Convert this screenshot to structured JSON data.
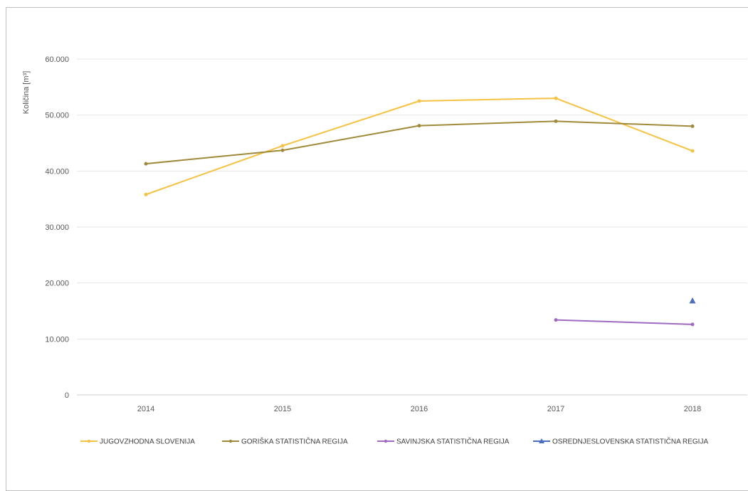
{
  "chart_data": {
    "type": "line",
    "title": "",
    "xlabel": "",
    "ylabel": "Količina [m³]",
    "categories": [
      "2014",
      "2015",
      "2016",
      "2017",
      "2018"
    ],
    "y_tick_labels": [
      "0",
      "10.000",
      "20.000",
      "30.000",
      "40.000",
      "50.000",
      "60.000"
    ],
    "ylim": [
      0,
      60000
    ],
    "grid": true,
    "legend_position": "bottom",
    "series": [
      {
        "name": "JUGOVZHODNA SLOVENIJA",
        "color": "#f5c242",
        "marker": "circle",
        "values": [
          35800,
          44500,
          52500,
          53000,
          43600
        ]
      },
      {
        "name": "GORIŠKA STATISTIČNA REGIJA",
        "color": "#a08a3a",
        "marker": "circle",
        "values": [
          41300,
          43700,
          48100,
          48900,
          48000
        ]
      },
      {
        "name": "SAVINJSKA STATISTIČNA REGIJA",
        "color": "#a06ac0",
        "marker": "circle",
        "values": [
          null,
          null,
          null,
          13400,
          12600
        ]
      },
      {
        "name": "OSREDNJESLOVENSKA STATISTIČNA REGIJA",
        "color": "#4a6fc0",
        "marker": "triangle",
        "values": [
          null,
          null,
          null,
          null,
          16800
        ]
      }
    ]
  }
}
